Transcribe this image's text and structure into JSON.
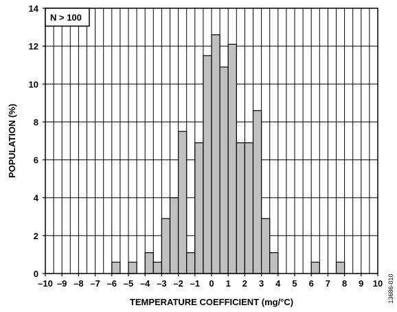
{
  "chart_data": {
    "type": "bar",
    "xlabel": "TEMPERATURE COEFFICIENT (mg/°C)",
    "ylabel": "POPULATION (%)",
    "annotation": "N > 100",
    "figure_id": "13686-010",
    "xlim": [
      -10,
      10
    ],
    "ylim": [
      0,
      14
    ],
    "grid": true,
    "bin_width": 0.5,
    "x_ticks": [
      -10,
      -9,
      -8,
      -7,
      -6,
      -5,
      -4,
      -3,
      -2,
      -1,
      0,
      1,
      2,
      3,
      4,
      5,
      6,
      7,
      8,
      9,
      10
    ],
    "x_tick_labels": [
      "–10",
      "–9",
      "–8",
      "–7",
      "–6",
      "–5",
      "–4",
      "–3",
      "–2",
      "–1",
      "0",
      "1",
      "2",
      "3",
      "4",
      "5",
      "6",
      "7",
      "8",
      "9",
      "10"
    ],
    "y_ticks": [
      0,
      2,
      4,
      6,
      8,
      10,
      12,
      14
    ],
    "y_tick_labels": [
      "0",
      "2",
      "4",
      "6",
      "8",
      "10",
      "12",
      "14"
    ],
    "bars": [
      {
        "x_start": -6.0,
        "x_end": -5.5,
        "value": 0.6
      },
      {
        "x_start": -5.0,
        "x_end": -4.5,
        "value": 0.6
      },
      {
        "x_start": -4.0,
        "x_end": -3.5,
        "value": 1.1
      },
      {
        "x_start": -3.5,
        "x_end": -3.0,
        "value": 0.6
      },
      {
        "x_start": -3.0,
        "x_end": -2.5,
        "value": 2.9
      },
      {
        "x_start": -2.5,
        "x_end": -2.0,
        "value": 4.0
      },
      {
        "x_start": -2.0,
        "x_end": -1.5,
        "value": 7.5
      },
      {
        "x_start": -1.5,
        "x_end": -1.0,
        "value": 1.1
      },
      {
        "x_start": -1.0,
        "x_end": -0.5,
        "value": 6.9
      },
      {
        "x_start": -0.5,
        "x_end": 0.0,
        "value": 11.5
      },
      {
        "x_start": 0.0,
        "x_end": 0.5,
        "value": 12.6
      },
      {
        "x_start": 0.5,
        "x_end": 1.0,
        "value": 10.9
      },
      {
        "x_start": 1.0,
        "x_end": 1.5,
        "value": 12.1
      },
      {
        "x_start": 1.5,
        "x_end": 2.0,
        "value": 6.9
      },
      {
        "x_start": 2.0,
        "x_end": 2.5,
        "value": 6.9
      },
      {
        "x_start": 2.5,
        "x_end": 3.0,
        "value": 8.6
      },
      {
        "x_start": 3.0,
        "x_end": 3.5,
        "value": 2.9
      },
      {
        "x_start": 3.5,
        "x_end": 4.0,
        "value": 1.1
      },
      {
        "x_start": 6.0,
        "x_end": 6.5,
        "value": 0.6
      },
      {
        "x_start": 7.5,
        "x_end": 8.0,
        "value": 0.6
      }
    ],
    "colors": {
      "bar_fill": "#c0c0c0",
      "bar_stroke": "#000000",
      "grid": "#000000"
    }
  }
}
